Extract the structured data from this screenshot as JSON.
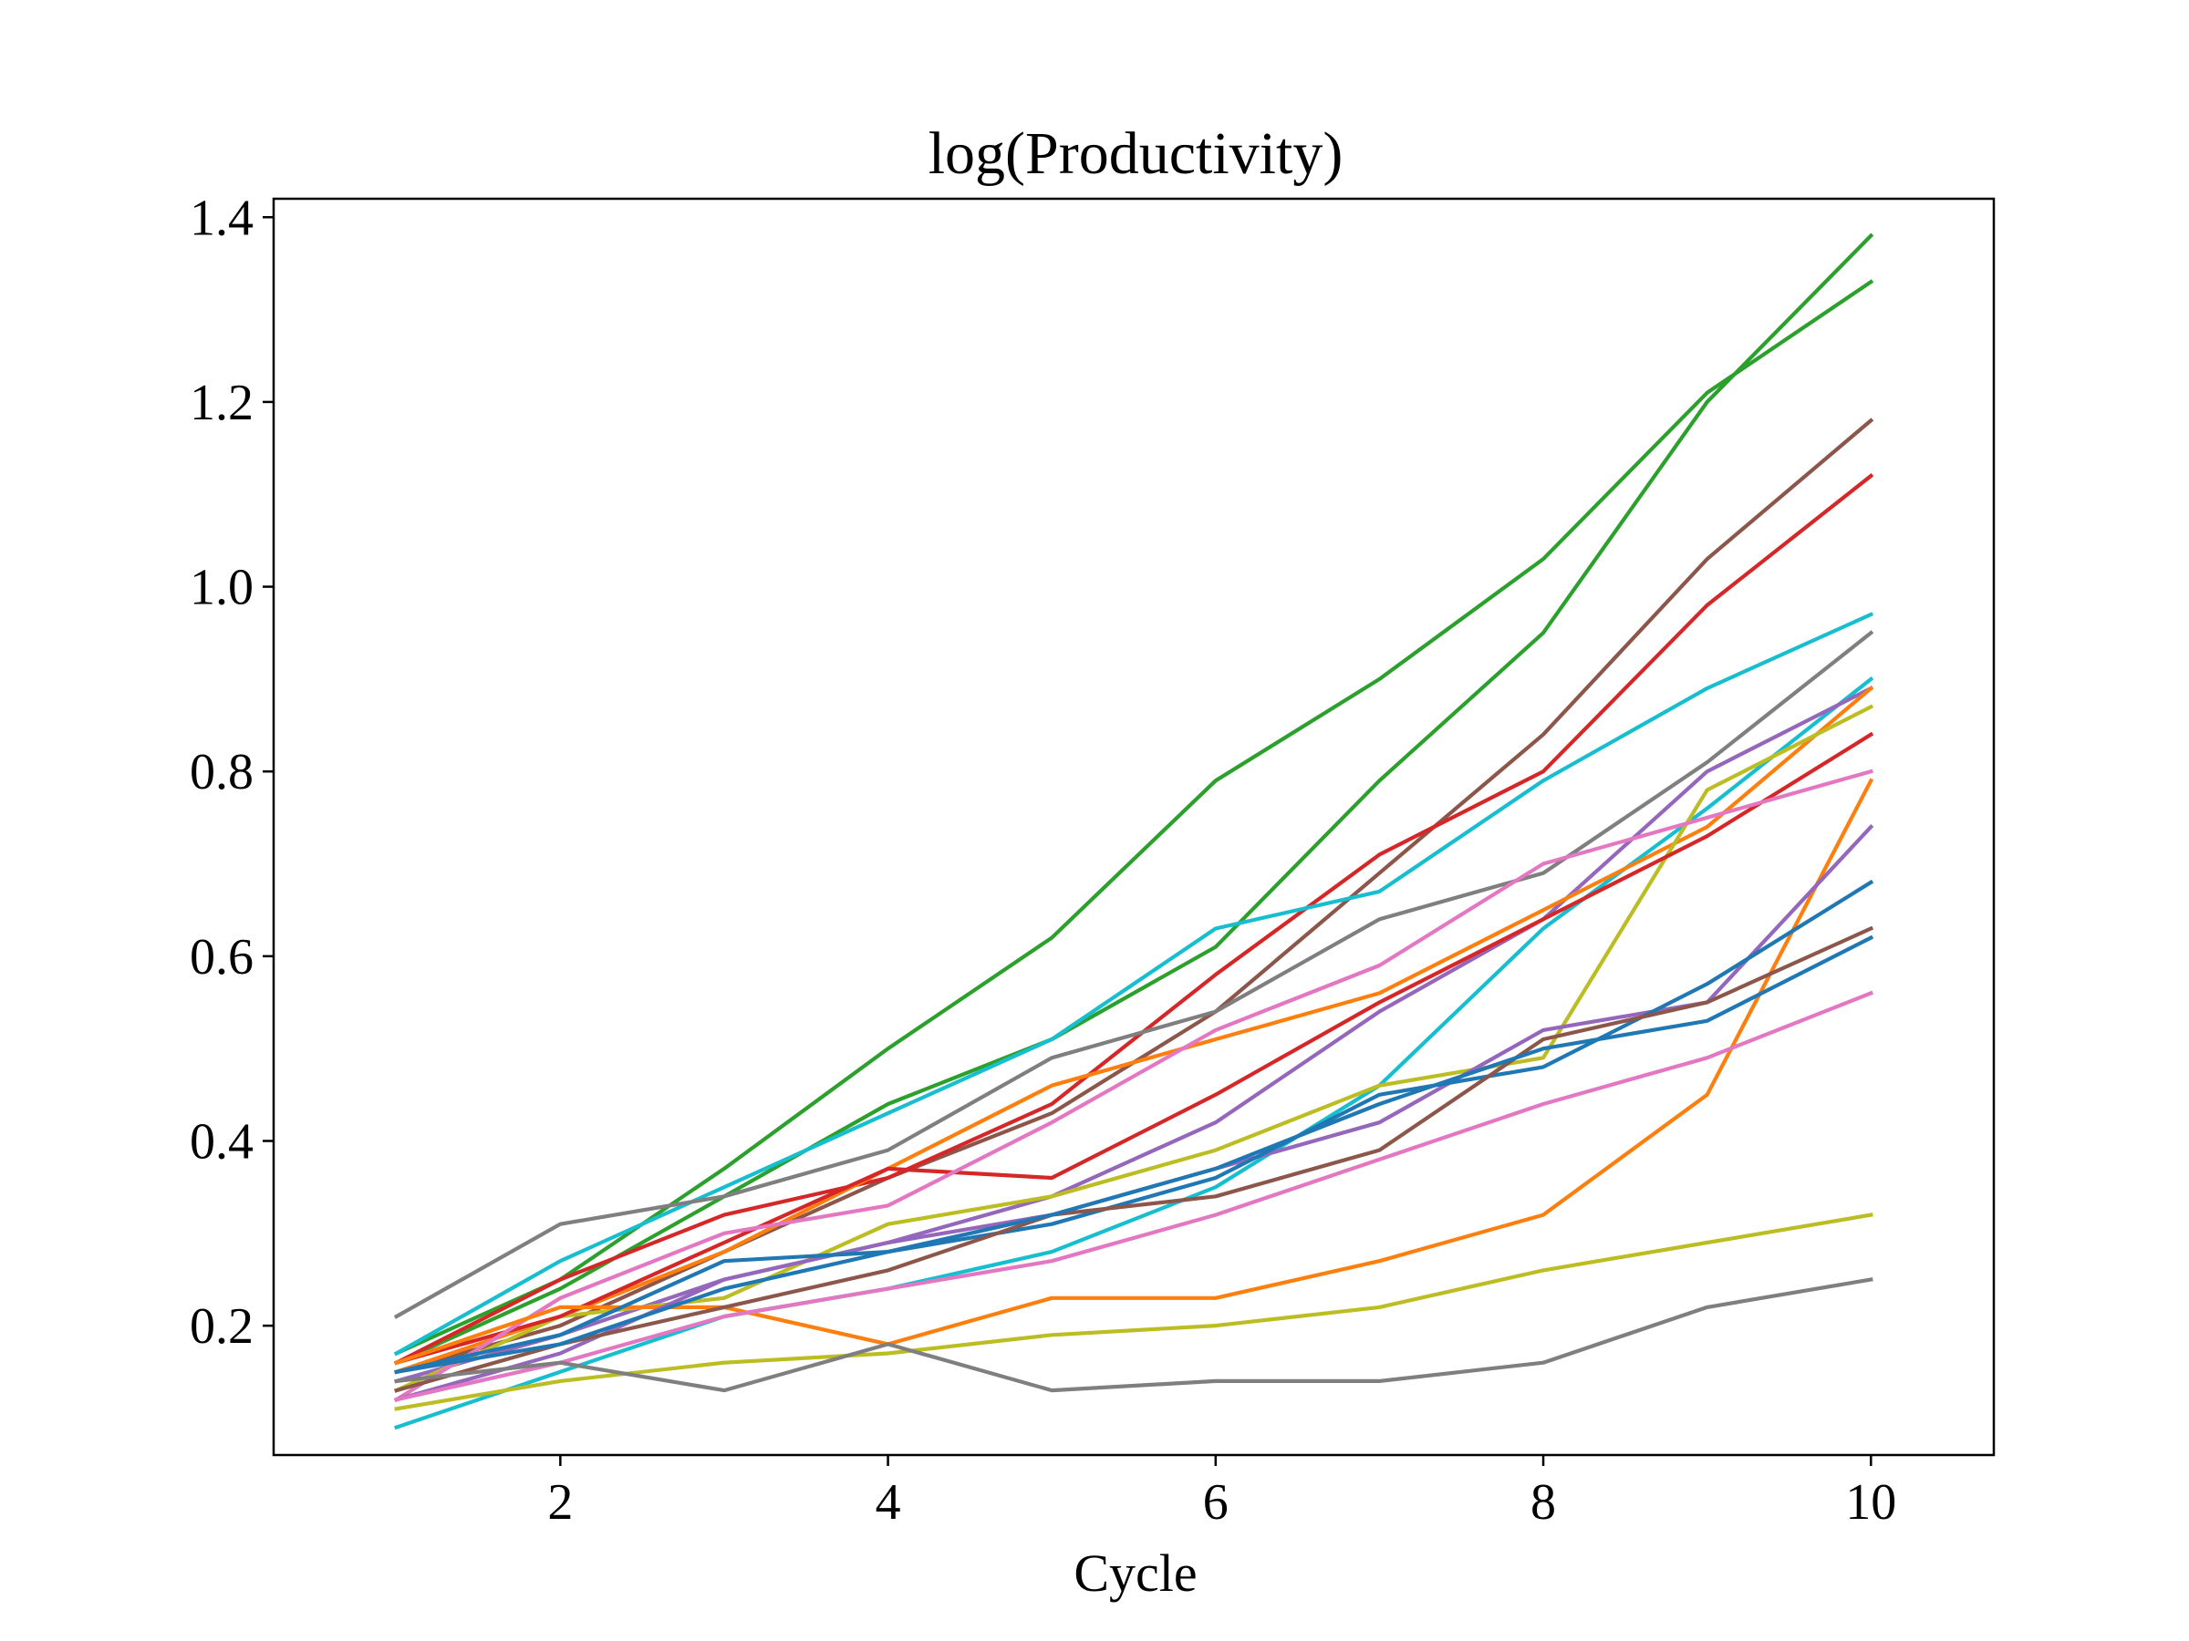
{
  "chart_data": {
    "type": "line",
    "title": "log(Productivity)",
    "xlabel": "Cycle",
    "ylabel": "",
    "xlim": [
      0.25,
      10.75
    ],
    "ylim": [
      0.06,
      1.42
    ],
    "xticks": [
      2,
      4,
      6,
      8,
      10
    ],
    "xtick_labels": [
      "2",
      "4",
      "6",
      "8",
      "10"
    ],
    "yticks": [
      0.2,
      0.4,
      0.6,
      0.8,
      1.0,
      1.2,
      1.4
    ],
    "ytick_labels": [
      "0.2",
      "0.4",
      "0.6",
      "0.8",
      "1.0",
      "1.2",
      "1.4"
    ],
    "grid": false,
    "legend": false,
    "x": [
      1,
      2,
      3,
      4,
      5,
      6,
      7,
      8,
      9,
      10
    ],
    "series": [
      {
        "color": "#2ca02c",
        "values": [
          0.17,
          0.25,
          0.37,
          0.5,
          0.62,
          0.79,
          0.9,
          1.03,
          1.21,
          1.33
        ]
      },
      {
        "color": "#2ca02c",
        "values": [
          0.16,
          0.24,
          0.34,
          0.44,
          0.51,
          0.61,
          0.79,
          0.95,
          1.2,
          1.38
        ]
      },
      {
        "color": "#8c564b",
        "values": [
          0.15,
          0.2,
          0.28,
          0.36,
          0.43,
          0.54,
          0.69,
          0.84,
          1.03,
          1.18
        ]
      },
      {
        "color": "#d62728",
        "values": [
          0.16,
          0.25,
          0.32,
          0.36,
          0.44,
          0.58,
          0.71,
          0.8,
          0.98,
          1.12
        ]
      },
      {
        "color": "#17becf",
        "values": [
          0.17,
          0.27,
          0.35,
          0.43,
          0.51,
          0.63,
          0.67,
          0.79,
          0.89,
          0.97
        ]
      },
      {
        "color": "#7f7f7f",
        "values": [
          0.21,
          0.31,
          0.34,
          0.39,
          0.49,
          0.54,
          0.64,
          0.69,
          0.81,
          0.95
        ]
      },
      {
        "color": "#17becf",
        "values": [
          0.09,
          0.15,
          0.21,
          0.24,
          0.28,
          0.35,
          0.46,
          0.63,
          0.76,
          0.9
        ]
      },
      {
        "color": "#9467bd",
        "values": [
          0.14,
          0.19,
          0.25,
          0.29,
          0.34,
          0.42,
          0.54,
          0.64,
          0.8,
          0.89
        ]
      },
      {
        "color": "#ff7f0e",
        "values": [
          0.15,
          0.21,
          0.28,
          0.37,
          0.46,
          0.51,
          0.56,
          0.65,
          0.74,
          0.89
        ]
      },
      {
        "color": "#bcbd22",
        "values": [
          0.13,
          0.21,
          0.23,
          0.31,
          0.34,
          0.39,
          0.46,
          0.49,
          0.78,
          0.87
        ]
      },
      {
        "color": "#d62728",
        "values": [
          0.16,
          0.21,
          0.29,
          0.37,
          0.36,
          0.45,
          0.55,
          0.64,
          0.73,
          0.84
        ]
      },
      {
        "color": "#e377c2",
        "values": [
          0.12,
          0.23,
          0.3,
          0.33,
          0.42,
          0.52,
          0.59,
          0.7,
          0.75,
          0.8
        ]
      },
      {
        "color": "#ff7f0e",
        "values": [
          0.16,
          0.22,
          0.22,
          0.18,
          0.23,
          0.23,
          0.27,
          0.32,
          0.45,
          0.79
        ]
      },
      {
        "color": "#9467bd",
        "values": [
          0.12,
          0.17,
          0.25,
          0.29,
          0.32,
          0.37,
          0.42,
          0.52,
          0.55,
          0.74
        ]
      },
      {
        "color": "#1f77b4",
        "values": [
          0.15,
          0.19,
          0.27,
          0.28,
          0.31,
          0.36,
          0.45,
          0.48,
          0.57,
          0.68
        ]
      },
      {
        "color": "#8c564b",
        "values": [
          0.13,
          0.18,
          0.22,
          0.26,
          0.32,
          0.34,
          0.39,
          0.51,
          0.55,
          0.63
        ]
      },
      {
        "color": "#1f77b4",
        "values": [
          0.15,
          0.18,
          0.24,
          0.28,
          0.32,
          0.37,
          0.44,
          0.5,
          0.53,
          0.62
        ]
      },
      {
        "color": "#e377c2",
        "values": [
          0.12,
          0.16,
          0.21,
          0.24,
          0.27,
          0.32,
          0.38,
          0.44,
          0.49,
          0.56
        ]
      },
      {
        "color": "#bcbd22",
        "values": [
          0.11,
          0.14,
          0.16,
          0.17,
          0.19,
          0.2,
          0.22,
          0.26,
          0.29,
          0.32
        ]
      },
      {
        "color": "#7f7f7f",
        "values": [
          0.14,
          0.16,
          0.13,
          0.18,
          0.13,
          0.14,
          0.14,
          0.16,
          0.22,
          0.25
        ]
      }
    ]
  }
}
